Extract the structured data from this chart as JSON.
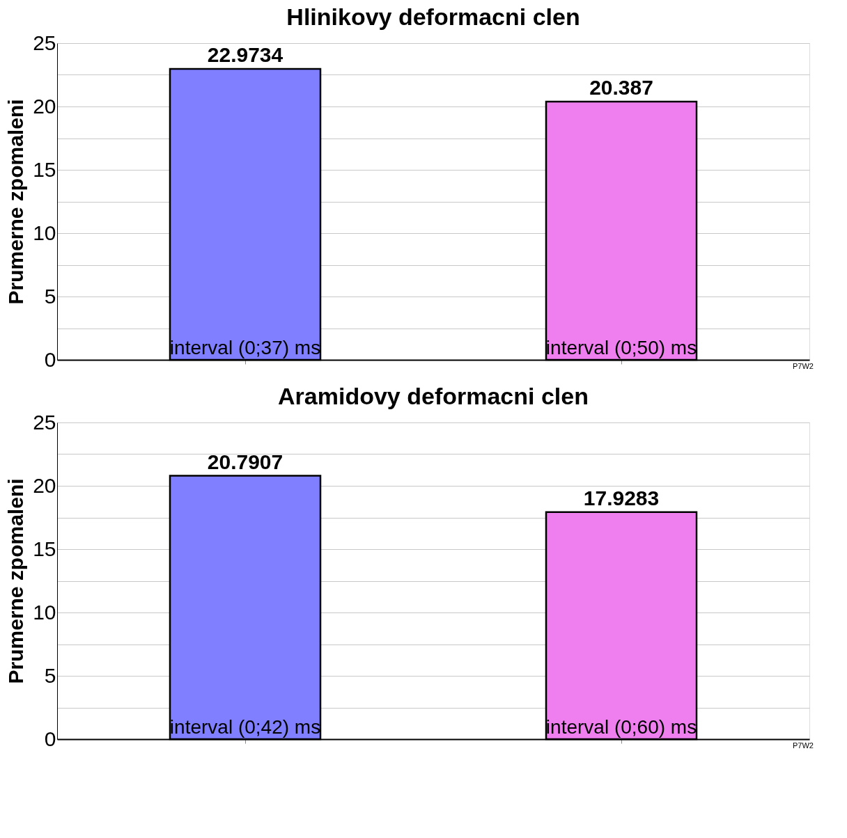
{
  "chart_data": [
    {
      "type": "bar",
      "title": "Hlinikovy deformacni clen",
      "ylabel": "Prumerne zpomaleni",
      "categories": [
        "interval (0;37) ms",
        "interval (0;50) ms"
      ],
      "values": [
        22.9734,
        20.387
      ],
      "colors": [
        "#7f7fff",
        "#ef7fef"
      ],
      "ylim": [
        0,
        25
      ],
      "yticks": [
        0,
        {
          "value": 2.5,
          "label": null
        },
        5,
        {
          "value": 7.5,
          "label": null
        },
        10,
        {
          "value": 12.5,
          "label": null
        },
        15,
        {
          "value": 17.5,
          "label": null
        },
        20,
        {
          "value": 22.5,
          "label": null
        },
        25
      ],
      "grid": "y",
      "data_labels": true,
      "annotations": [
        "P7W2"
      ]
    },
    {
      "type": "bar",
      "title": "Aramidovy deformacni clen",
      "ylabel": "Prumerne zpomaleni",
      "categories": [
        "interval (0;42) ms",
        "interval (0;60) ms"
      ],
      "values": [
        20.7907,
        17.9283
      ],
      "colors": [
        "#7f7fff",
        "#ef7fef"
      ],
      "ylim": [
        0,
        25
      ],
      "yticks": [
        0,
        {
          "value": 2.5,
          "label": null
        },
        5,
        {
          "value": 7.5,
          "label": null
        },
        10,
        {
          "value": 12.5,
          "label": null
        },
        15,
        {
          "value": 17.5,
          "label": null
        },
        20,
        {
          "value": 22.5,
          "label": null
        },
        25
      ],
      "grid": "y",
      "data_labels": true,
      "annotations": [
        "P7W2"
      ]
    }
  ]
}
